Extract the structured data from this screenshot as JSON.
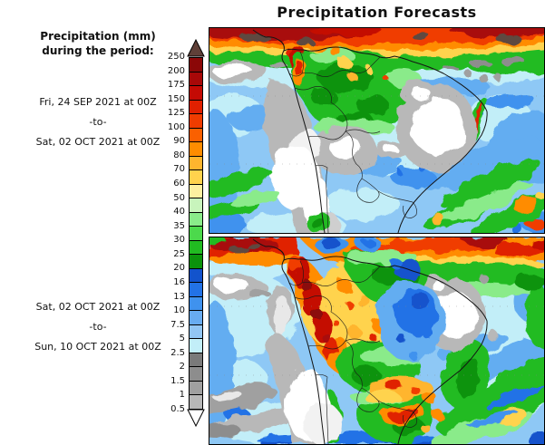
{
  "title": "Precipitation Forecasts",
  "legend": {
    "heading_line1": "Precipitation (mm)",
    "heading_line2": "during the period:",
    "period1": {
      "from": "Fri, 24 SEP 2021 at 00Z",
      "separator": "-to-",
      "to": "Sat, 02 OCT 2021 at 00Z"
    },
    "period2": {
      "from": "Sat, 02 OCT 2021 at 00Z",
      "separator": "-to-",
      "to": "Sun, 10 OCT 2021 at 00Z"
    }
  },
  "colorbar": {
    "units": "mm",
    "ticks": [
      "250",
      "200",
      "175",
      "150",
      "125",
      "100",
      "90",
      "80",
      "70",
      "60",
      "50",
      "40",
      "35",
      "30",
      "25",
      "20",
      "16",
      "13",
      "10",
      "7.5",
      "5",
      "2.5",
      "2",
      "1.5",
      "1",
      "0.5"
    ],
    "segment_colors_top_to_bottom": [
      "#8b0707",
      "#a80808",
      "#c40a04",
      "#e02000",
      "#f03c00",
      "#fa6000",
      "#ff8c00",
      "#ffb52e",
      "#ffd34d",
      "#fdf0a0",
      "#c8f4bc",
      "#8aeb8a",
      "#4cd94c",
      "#21bb21",
      "#0b930b",
      "#1253cc",
      "#2272e6",
      "#3f92ee",
      "#68acf1",
      "#92c6f4",
      "#c2eef8",
      "#7a7a7a",
      "#8d8d8d",
      "#a0a0a0",
      "#b8b8b8"
    ],
    "over_max_color": "#5f4038",
    "under_min_color": "#ffffff"
  },
  "chart_data": {
    "type": "heatmap",
    "title": "Precipitation Forecasts",
    "legend_title": "Precipitation (mm) during the period:",
    "units": "mm",
    "scale_values_low_to_high": [
      0.5,
      1,
      1.5,
      2,
      2.5,
      5,
      7.5,
      10,
      13,
      16,
      20,
      25,
      30,
      35,
      40,
      50,
      60,
      70,
      80,
      90,
      100,
      125,
      150,
      175,
      200,
      250
    ],
    "legend_position": "left",
    "panels": [
      {
        "period_start": "Fri, 24 SEP 2021 at 00Z",
        "period_end": "Sat, 02 OCT 2021 at 00Z",
        "region": "South America"
      },
      {
        "period_start": "Sat, 02 OCT 2021 at 00Z",
        "period_end": "Sun, 10 OCT 2021 at 00Z",
        "region": "South America"
      }
    ]
  }
}
